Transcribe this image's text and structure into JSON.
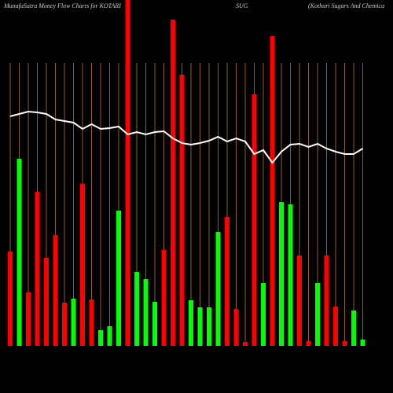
{
  "chart_data": {
    "type": "bar",
    "title_parts": [
      "MunafaSutra  Money  Flow  Charts for  KOTARI",
      "SUG",
      "(Kothari   Sugars  And  Chemica"
    ],
    "bar_values": [
      120,
      238,
      68,
      196,
      112,
      141,
      55,
      60,
      206,
      59,
      20,
      25,
      172,
      440,
      94,
      85,
      56,
      122,
      415,
      345,
      58,
      49,
      49,
      145,
      164,
      47,
      5,
      320,
      80,
      394,
      183,
      180,
      115,
      6,
      80,
      115,
      50,
      6,
      45,
      8
    ],
    "bar_colors": [
      "#ff0000",
      "#00ff00",
      "#ff0000",
      "#ff0000",
      "#ff0000",
      "#ff0000",
      "#ff0000",
      "#00ff00",
      "#ff0000",
      "#ff0000",
      "#00ff00",
      "#00ff00",
      "#00ff00",
      "#ff0000",
      "#00ff00",
      "#00ff00",
      "#00ff00",
      "#ff0000",
      "#ff0000",
      "#ff0000",
      "#00ff00",
      "#00ff00",
      "#00ff00",
      "#00ff00",
      "#ff0000",
      "#ff0000",
      "#ff0000",
      "#ff0000",
      "#00ff00",
      "#ff0000",
      "#00ff00",
      "#00ff00",
      "#ff0000",
      "#ff0000",
      "#00ff00",
      "#ff0000",
      "#ff0000",
      "#ff0000",
      "#00ff00",
      "#00ff00"
    ],
    "line_values": [
      292,
      295,
      298,
      297,
      295,
      288,
      286,
      284,
      276,
      282,
      276,
      277,
      279,
      269,
      272,
      269,
      272,
      273,
      264,
      258,
      256,
      258,
      261,
      266,
      260,
      264,
      260,
      244,
      249,
      233,
      247,
      256,
      257,
      253,
      257,
      251,
      247,
      244,
      244,
      251
    ],
    "line_color": "#ffffff",
    "grid_color": "#b87333",
    "ylim": [
      0,
      440
    ]
  }
}
